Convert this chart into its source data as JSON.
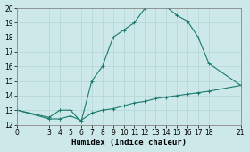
{
  "xlabel": "Humidex (Indice chaleur)",
  "bg_color": "#cce8e8",
  "grid_color": "#b8d8d8",
  "line_color": "#1a7a6e",
  "upper_x": [
    0,
    3,
    4,
    5,
    6,
    7,
    8,
    9,
    10,
    11,
    12,
    13,
    14,
    15,
    16,
    17,
    18,
    21
  ],
  "upper_y": [
    13,
    12.5,
    13.0,
    13.0,
    12.2,
    15.0,
    16.0,
    18.0,
    18.5,
    19.0,
    20.0,
    20.1,
    20.1,
    19.5,
    19.1,
    18.0,
    16.2,
    14.7
  ],
  "lower_x": [
    0,
    3,
    4,
    5,
    6,
    7,
    8,
    9,
    10,
    11,
    12,
    13,
    14,
    15,
    16,
    17,
    18,
    21
  ],
  "lower_y": [
    13,
    12.4,
    12.4,
    12.6,
    12.3,
    12.8,
    13.0,
    13.1,
    13.3,
    13.5,
    13.6,
    13.8,
    13.9,
    14.0,
    14.1,
    14.2,
    14.3,
    14.7
  ],
  "xlim": [
    0,
    21
  ],
  "ylim": [
    12,
    20
  ],
  "xticks": [
    0,
    3,
    4,
    5,
    6,
    7,
    8,
    9,
    10,
    11,
    12,
    13,
    14,
    15,
    16,
    17,
    18,
    21
  ],
  "yticks": [
    12,
    13,
    14,
    15,
    16,
    17,
    18,
    19,
    20
  ],
  "tick_fontsize": 5.5,
  "label_fontsize": 6.5
}
